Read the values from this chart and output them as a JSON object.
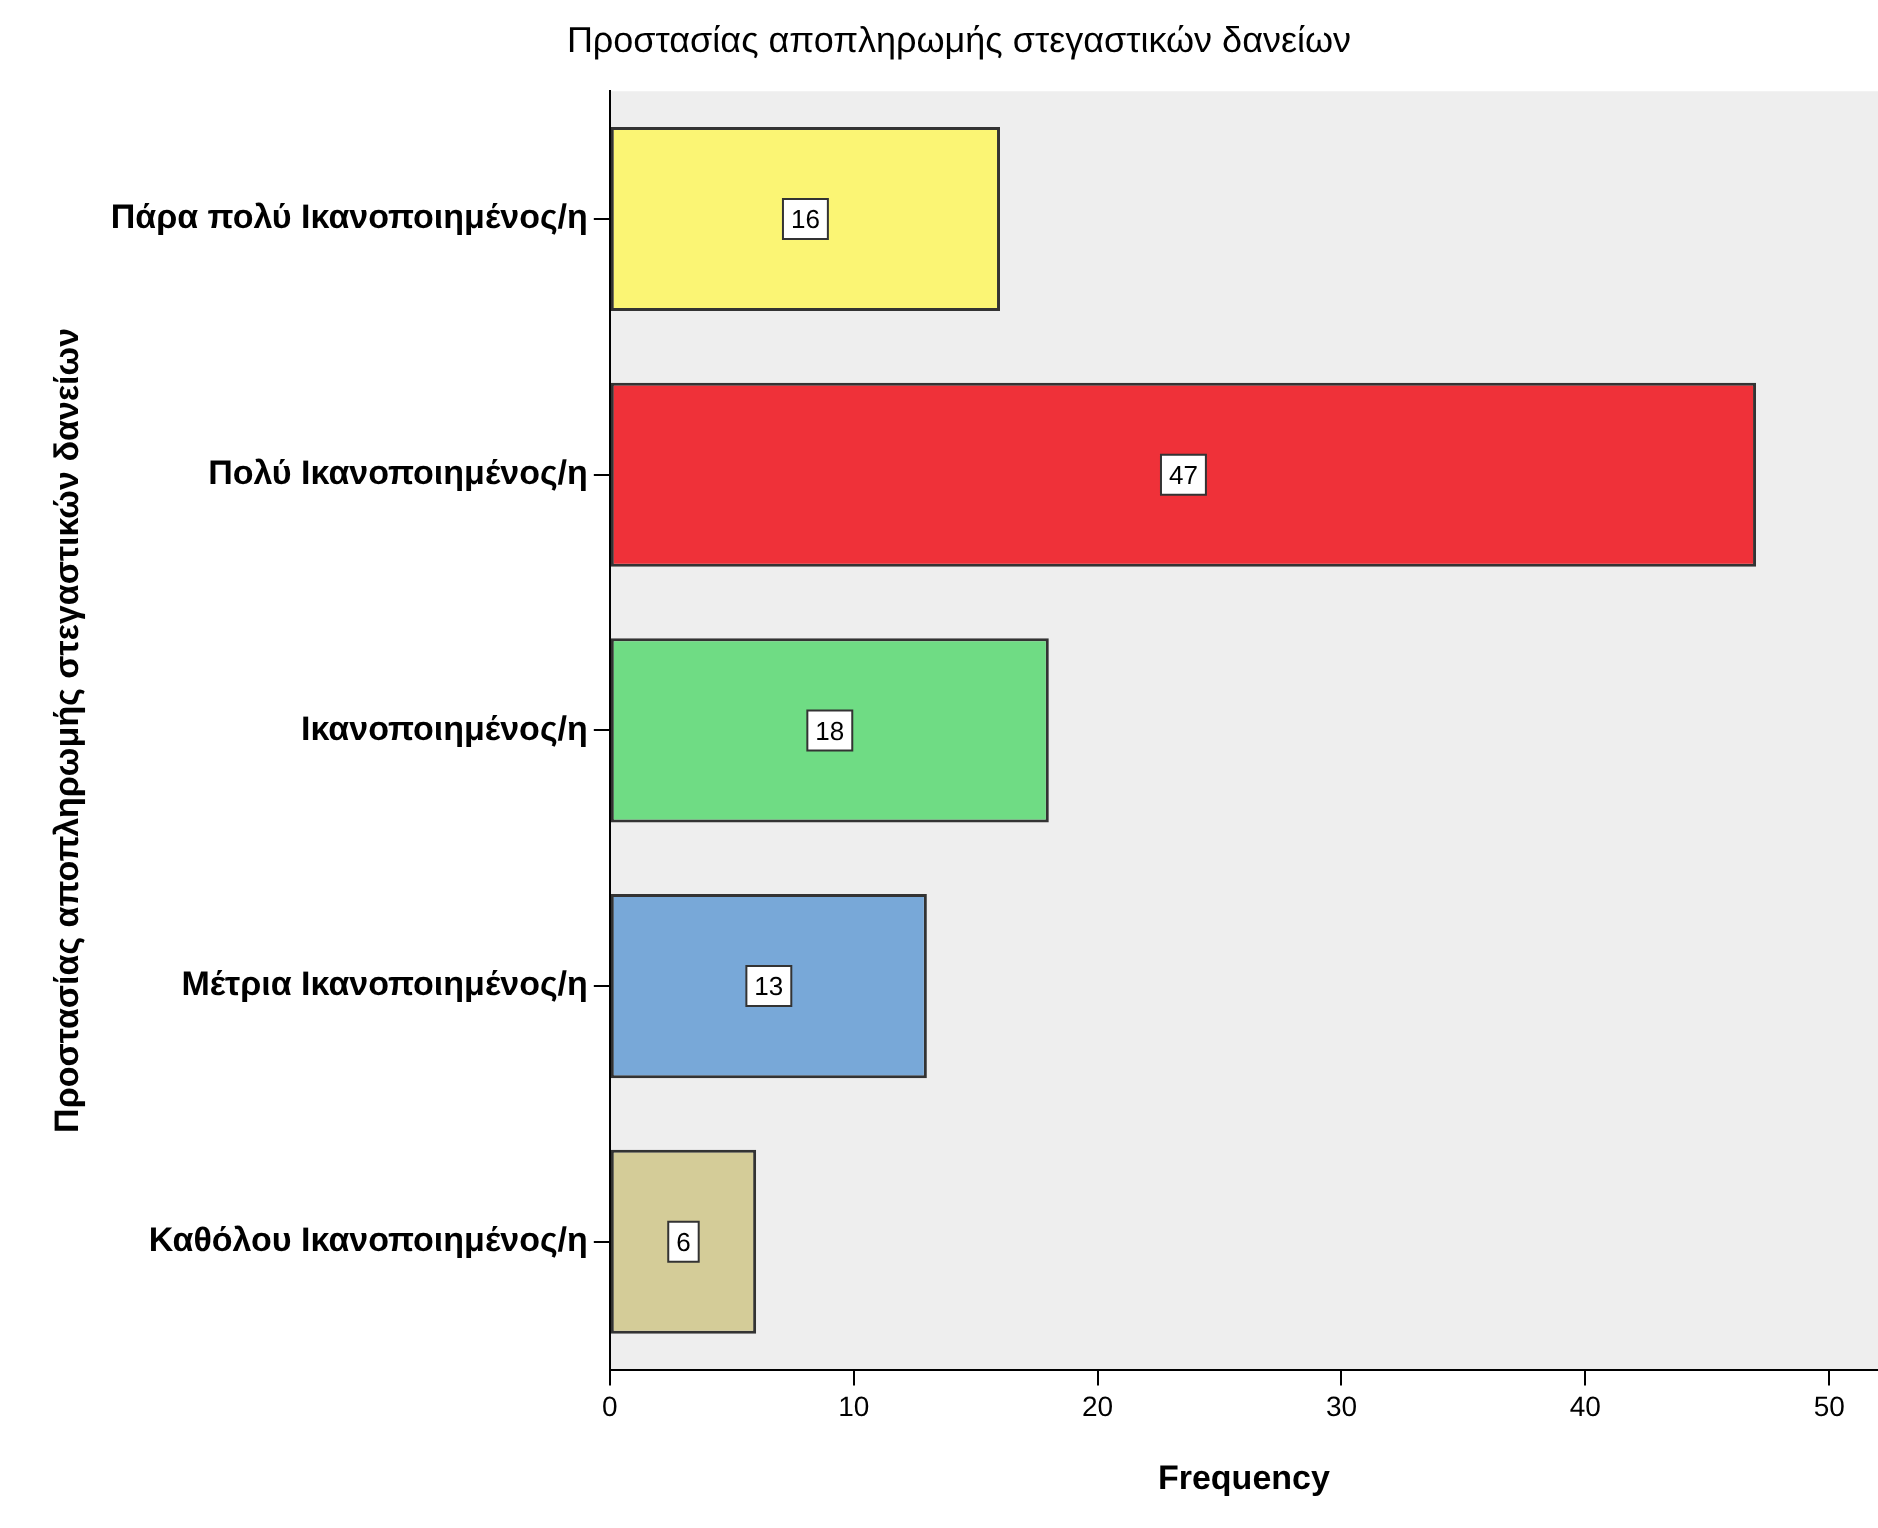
{
  "chart_data": {
    "type": "bar",
    "orientation": "horizontal",
    "title": "Προστασίας αποπληρωμής στεγαστικών δανείων",
    "xlabel": "Frequency",
    "ylabel": "Προστασίας αποπληρωμής στεγαστικών δανείων",
    "categories": [
      "Πάρα πολύ Ικανοποιημένος/η",
      "Πολύ Ικανοποιημένος/η",
      "Ικανοποιημένος/η",
      "Μέτρια Ικανοποιημένος/η",
      "Καθόλου Ικανοποιημένος/η"
    ],
    "values": [
      16,
      47,
      18,
      13,
      6
    ],
    "colors": [
      "#fbf574",
      "#ef3139",
      "#6fdc84",
      "#78a8d8",
      "#d4cc98"
    ],
    "xlim": [
      0,
      52
    ],
    "xticks": [
      0,
      10,
      20,
      30,
      40,
      50
    ],
    "data_labels": true,
    "grid": false,
    "legend": false
  }
}
